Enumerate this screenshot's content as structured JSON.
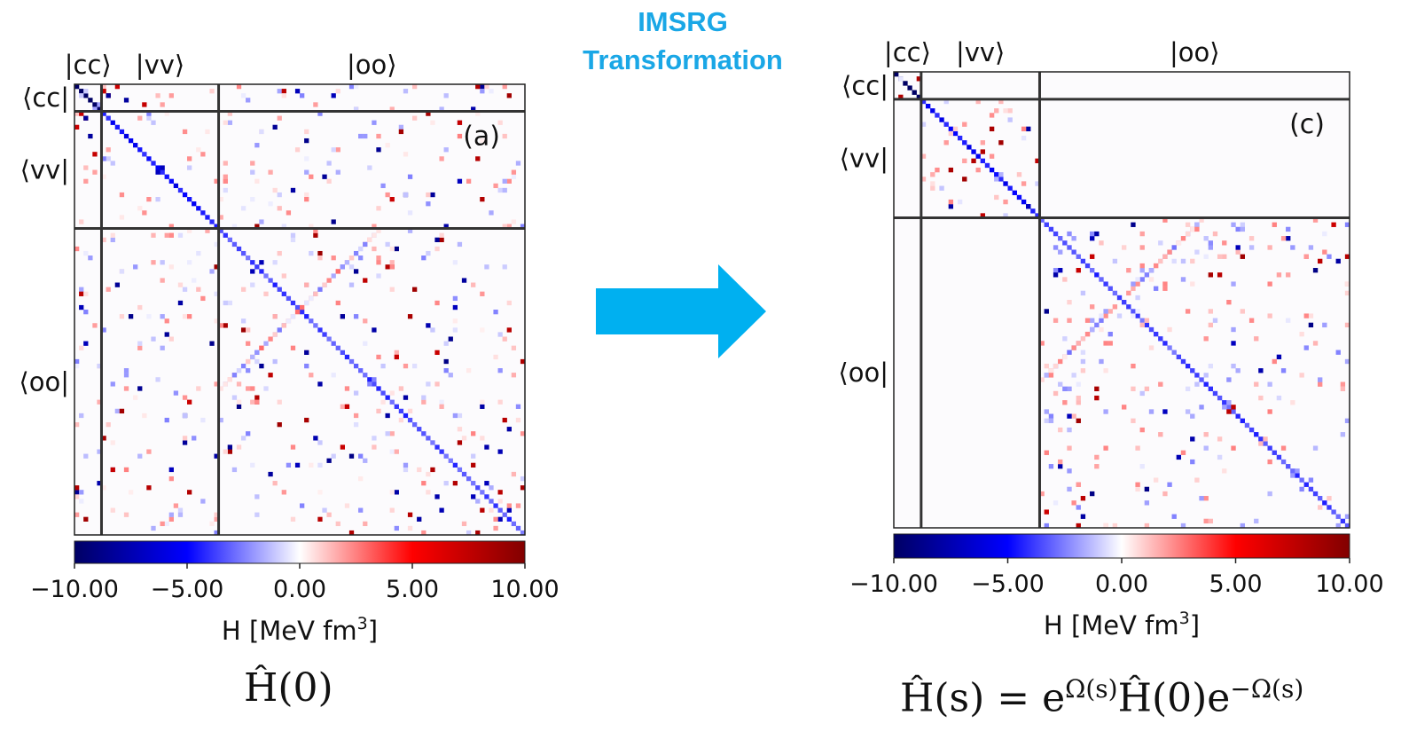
{
  "header": {
    "line1": "IMSRG",
    "line2": "Transformation",
    "accent": "#1aa7e6"
  },
  "formulas": {
    "left": {
      "main": "Ĥ(0)"
    },
    "right": {
      "lhs": "Ĥ(s) = e",
      "exp1": "Ω(s)",
      "mid": "Ĥ(0)e",
      "exp2": "−Ω(s)"
    }
  },
  "chart_data": [
    {
      "type": "heatmap",
      "panel_label": "(a)",
      "block_labels": {
        "cols": [
          "|cc⟩",
          "|vv⟩",
          "|oo⟩"
        ],
        "rows": [
          "⟨cc|",
          "⟨vv|",
          "⟨oo|"
        ]
      },
      "colorbar": {
        "min": -10,
        "max": 10,
        "ticks": [
          "−10.00",
          "−5.00",
          "0.00",
          "5.00",
          "10.00"
        ],
        "label": "H [MeV fm",
        "label_sup": "3",
        "label_end": "]",
        "cmap": "seismic"
      },
      "matrix_size": 100,
      "block_bounds": [
        6,
        32
      ],
      "offdiag_coupling": true
    },
    {
      "type": "heatmap",
      "panel_label": "(c)",
      "block_labels": {
        "cols": [
          "|cc⟩",
          "|vv⟩",
          "|oo⟩"
        ],
        "rows": [
          "⟨cc|",
          "⟨vv|",
          "⟨oo|"
        ]
      },
      "colorbar": {
        "min": -10,
        "max": 10,
        "ticks": [
          "−10.00",
          "−5.00",
          "0.00",
          "5.00",
          "10.00"
        ],
        "label": "H [MeV fm",
        "label_sup": "3",
        "label_end": "]",
        "cmap": "seismic"
      },
      "matrix_size": 100,
      "block_bounds": [
        6,
        32
      ],
      "offdiag_coupling": false
    }
  ]
}
